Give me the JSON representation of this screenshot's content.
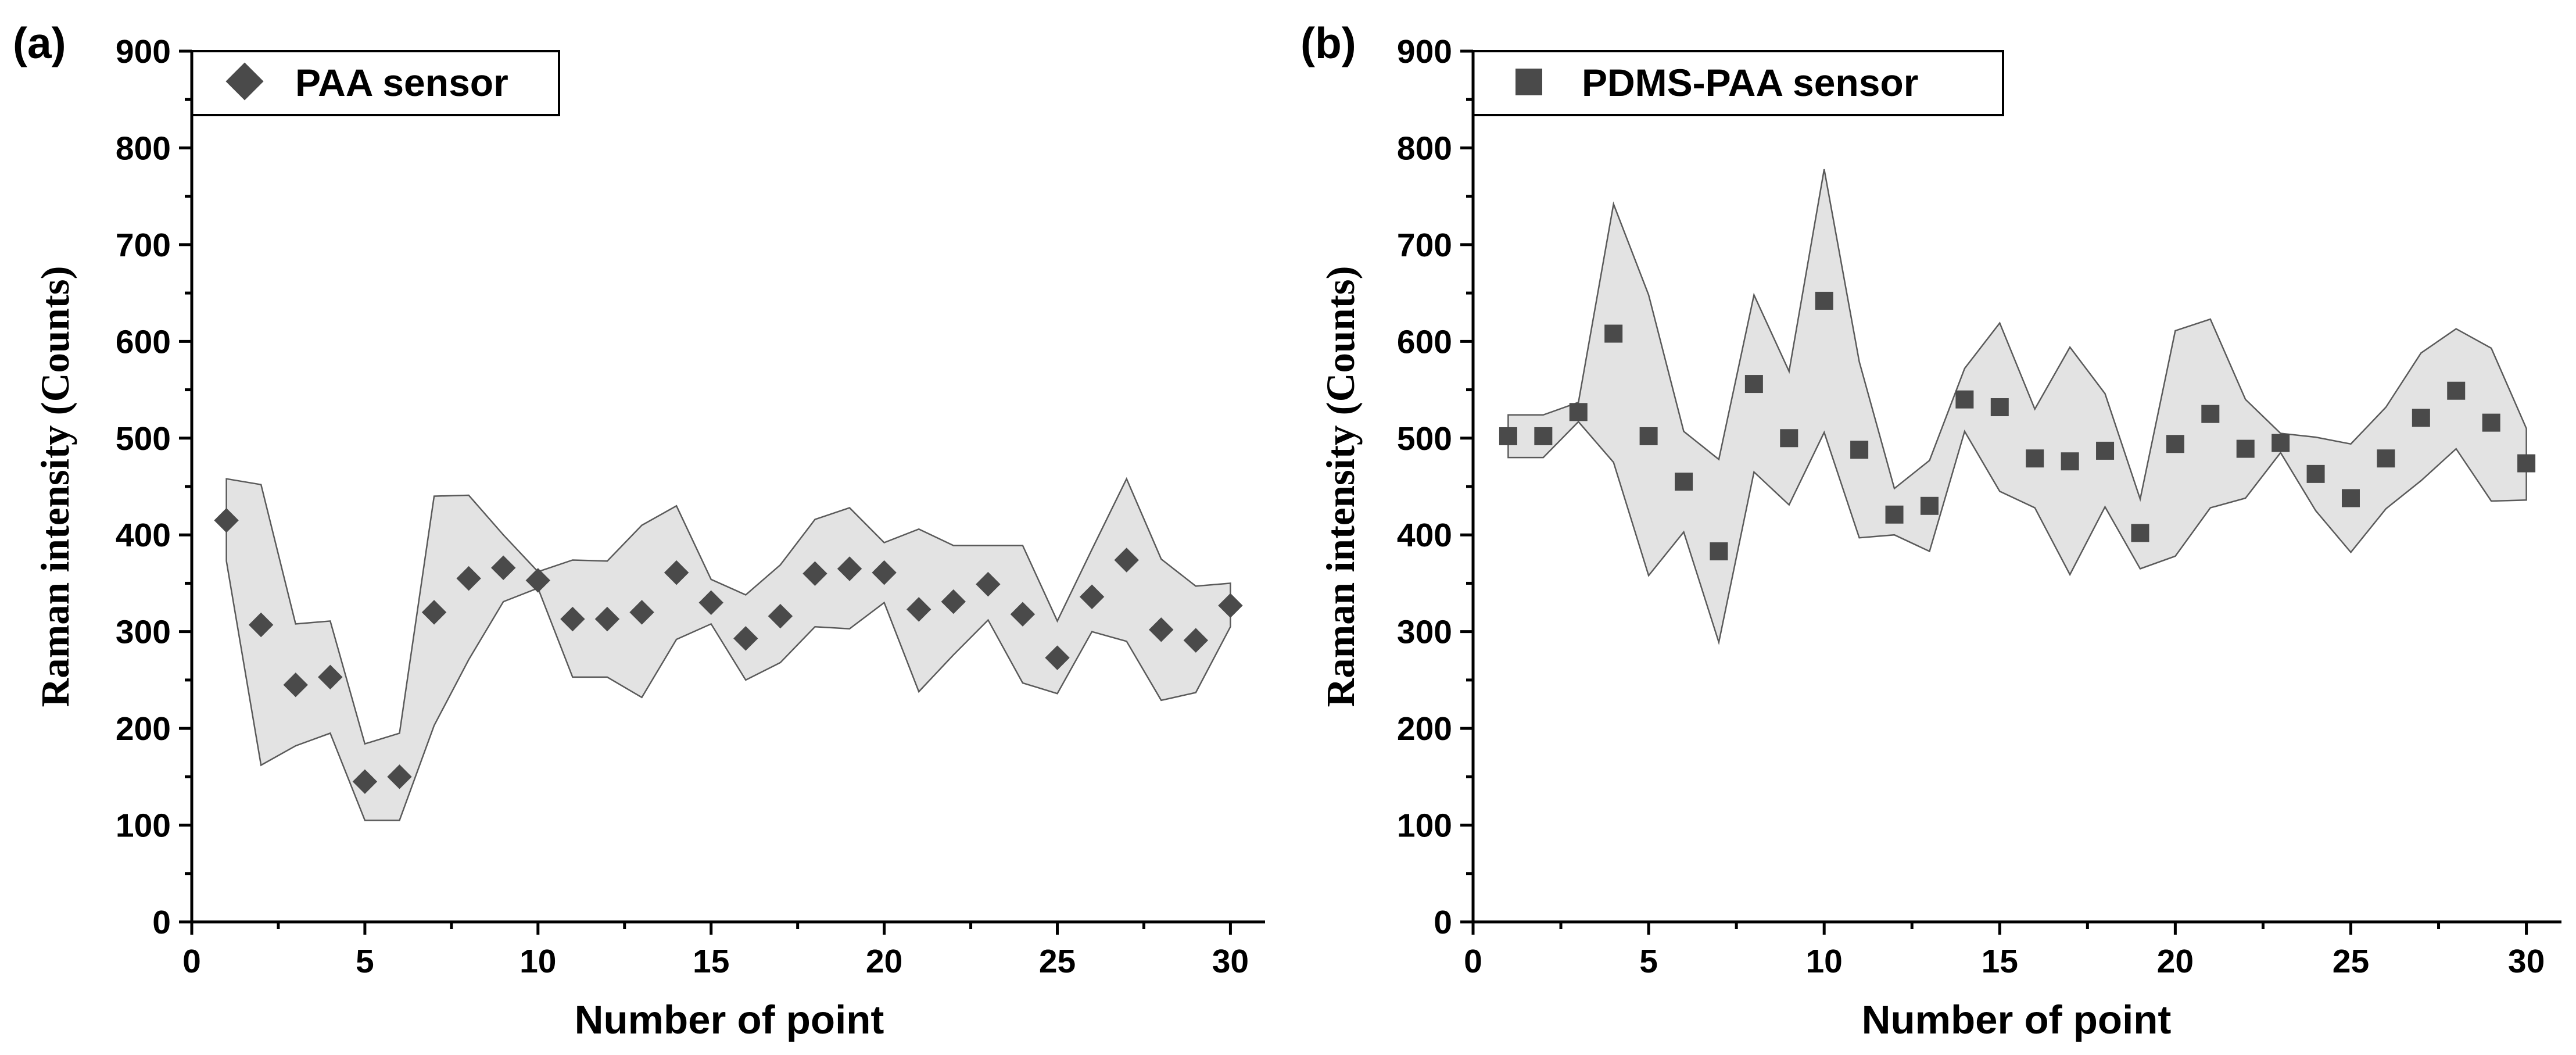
{
  "chart_data": [
    {
      "panel": "(a)",
      "type": "scatter",
      "xlabel": "Number of point",
      "ylabel": "Raman intensity (Counts)",
      "xlim": [
        0,
        31
      ],
      "ylim": [
        0,
        900
      ],
      "xticks": [
        0,
        5,
        10,
        15,
        20,
        25,
        30
      ],
      "yticks": [
        0,
        100,
        200,
        300,
        400,
        500,
        600,
        700,
        800,
        900
      ],
      "legend": "top-left",
      "marker": "diamond",
      "series": [
        {
          "name": "PAA sensor",
          "x": [
            1,
            2,
            3,
            4,
            5,
            6,
            7,
            8,
            9,
            10,
            11,
            12,
            13,
            14,
            15,
            16,
            17,
            18,
            19,
            20,
            21,
            22,
            23,
            24,
            25,
            26,
            27,
            28,
            29,
            30
          ],
          "values": [
            415,
            307,
            245,
            253,
            145,
            150,
            320,
            355,
            366,
            353,
            313,
            313,
            320,
            361,
            330,
            293,
            316,
            360,
            365,
            361,
            323,
            331,
            349,
            318,
            273,
            336,
            374,
            302,
            291,
            327
          ],
          "band_upper": [
            458,
            452,
            308,
            311,
            184,
            195,
            440,
            441,
            400,
            362,
            374,
            373,
            410,
            430,
            354,
            338,
            369,
            416,
            428,
            392,
            406,
            389,
            389,
            389,
            311,
            385,
            458,
            375,
            347,
            350
          ],
          "band_lower": [
            373,
            162,
            182,
            195,
            105,
            105,
            203,
            271,
            331,
            345,
            253,
            253,
            232,
            292,
            308,
            250,
            268,
            305,
            303,
            330,
            238,
            276,
            312,
            247,
            236,
            300,
            290,
            229,
            237,
            305
          ]
        }
      ]
    },
    {
      "panel": "(b)",
      "type": "scatter",
      "xlabel": "Number of point",
      "ylabel": "Raman intensity (Counts)",
      "xlim": [
        0,
        31
      ],
      "ylim": [
        0,
        900
      ],
      "xticks": [
        0,
        5,
        10,
        15,
        20,
        25,
        30
      ],
      "yticks": [
        0,
        100,
        200,
        300,
        400,
        500,
        600,
        700,
        800,
        900
      ],
      "legend": "top-left",
      "marker": "square",
      "series": [
        {
          "name": "PDMS-PAA sensor",
          "x": [
            1,
            2,
            3,
            4,
            5,
            6,
            7,
            8,
            9,
            10,
            11,
            12,
            13,
            14,
            15,
            16,
            17,
            18,
            19,
            20,
            21,
            22,
            23,
            24,
            25,
            26,
            27,
            28,
            29,
            30
          ],
          "values": [
            502,
            502,
            527,
            608,
            502,
            455,
            383,
            556,
            500,
            642,
            488,
            421,
            430,
            540,
            532,
            479,
            476,
            487,
            402,
            494,
            525,
            489,
            495,
            463,
            438,
            479,
            521,
            549,
            516,
            474
          ],
          "band_upper": [
            524,
            524,
            537,
            742,
            648,
            507,
            478,
            648,
            569,
            778,
            579,
            448,
            477,
            572,
            619,
            530,
            594,
            546,
            437,
            611,
            623,
            540,
            505,
            501,
            494,
            532,
            588,
            613,
            593,
            510
          ],
          "band_lower": [
            480,
            480,
            517,
            475,
            358,
            403,
            289,
            465,
            431,
            506,
            397,
            400,
            383,
            507,
            445,
            428,
            359,
            429,
            365,
            378,
            428,
            438,
            485,
            425,
            382,
            427,
            456,
            489,
            435,
            436
          ]
        }
      ]
    }
  ]
}
